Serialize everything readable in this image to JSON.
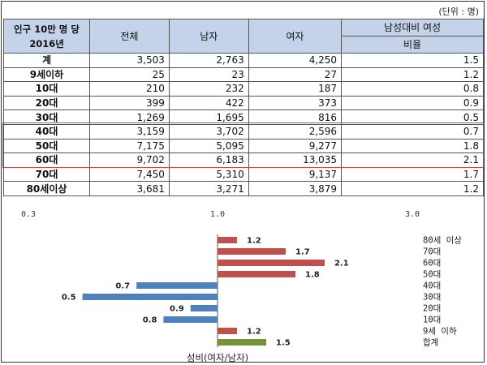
{
  "unit_note": "(단위 : 명)",
  "table": {
    "corner_line1": "인구 10만 명 당",
    "corner_line2": "2016년",
    "headers": [
      "전체",
      "남자",
      "여자",
      "남성대비 여성",
      "비율"
    ],
    "rows": [
      {
        "label": "계",
        "total": "3,503",
        "male": "2,763",
        "female": "4,250",
        "ratio": "1.5"
      },
      {
        "label": "9세이하",
        "total": "25",
        "male": "23",
        "female": "27",
        "ratio": "1.2"
      },
      {
        "label": "10대",
        "total": "210",
        "male": "232",
        "female": "187",
        "ratio": "0.8"
      },
      {
        "label": "20대",
        "total": "399",
        "male": "422",
        "female": "373",
        "ratio": "0.9"
      },
      {
        "label": "30대",
        "total": "1,269",
        "male": "1,695",
        "female": "816",
        "ratio": "0.5"
      },
      {
        "label": "40대",
        "total": "3,159",
        "male": "3,702",
        "female": "2,596",
        "ratio": "0.7"
      },
      {
        "label": "50대",
        "total": "7,175",
        "male": "5,095",
        "female": "9,277",
        "ratio": "1.8"
      },
      {
        "label": "60대",
        "total": "9,702",
        "male": "6,183",
        "female": "13,035",
        "ratio": "2.1"
      },
      {
        "label": "70대",
        "total": "7,450",
        "male": "5,310",
        "female": "9,137",
        "ratio": "1.7"
      },
      {
        "label": "80세이상",
        "total": "3,681",
        "male": "3,271",
        "female": "3,879",
        "ratio": "1.2"
      }
    ]
  },
  "colors": {
    "above": "#c0504d",
    "below": "#4f81bd",
    "total": "#76933c",
    "header_bg": "#c5d3ea",
    "highlight": "#c0504d"
  },
  "chart_data": {
    "type": "bar",
    "orientation": "horizontal",
    "categories": [
      "80세 이상",
      "70대",
      "60대",
      "50대",
      "40대",
      "30대",
      "20대",
      "10대",
      "9세 이하",
      "합계"
    ],
    "values": [
      1.2,
      1.7,
      2.1,
      1.8,
      0.7,
      0.5,
      0.9,
      0.8,
      1.2,
      1.5
    ],
    "value_labels": [
      "1.2",
      "1.7",
      "2.1",
      "1.8",
      "0.7",
      "0.5",
      "0.9",
      "0.8",
      "1.2",
      "1.5"
    ],
    "baseline": 1.0,
    "xlim": [
      0.3,
      3.0
    ],
    "x_ticks": [
      "0.3",
      "1.0",
      "3.0"
    ],
    "xlabel": "성비(여자/남자)",
    "grid": false,
    "legend": "none"
  }
}
